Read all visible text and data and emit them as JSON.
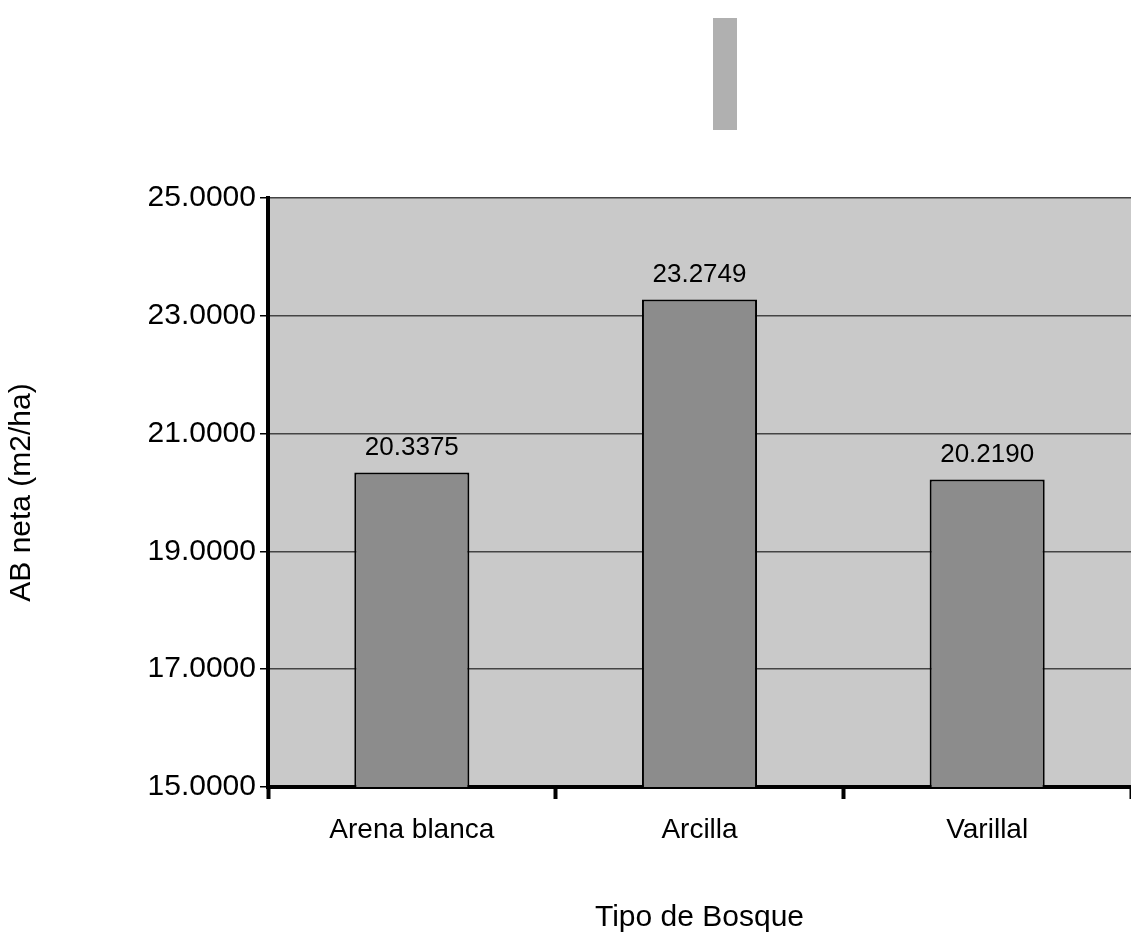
{
  "chart_data": {
    "type": "bar",
    "xlabel": "Tipo de Bosque",
    "ylabel": "AB neta (m2/ha)",
    "categories": [
      "Arena blanca",
      "Arcilla",
      "Varillal"
    ],
    "values": [
      20.3375,
      23.2749,
      20.219
    ],
    "color": "#8c8c8c",
    "ylim": [
      15,
      25
    ],
    "yticks": [
      {
        "value": 15,
        "label": "15.0000"
      },
      {
        "value": 17,
        "label": "17.0000"
      },
      {
        "value": 19,
        "label": "19.0000"
      },
      {
        "value": 21,
        "label": "21.0000"
      },
      {
        "value": 23,
        "label": "23.0000"
      },
      {
        "value": 25,
        "label": "25.0000"
      }
    ],
    "value_labels": [
      "20.3375",
      "23.2749",
      "20.2190"
    ],
    "grid": "y",
    "legend": false
  }
}
